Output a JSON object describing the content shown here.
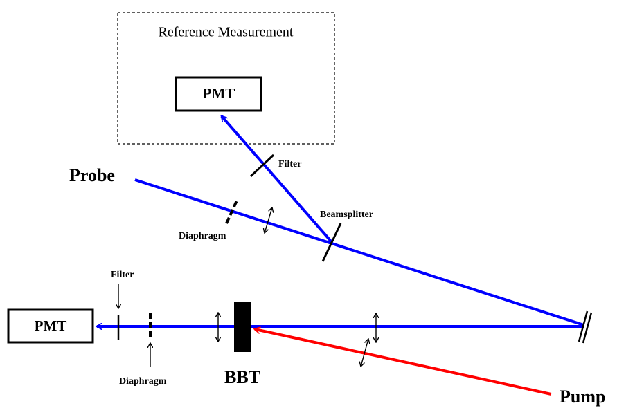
{
  "reference_box": {
    "title": "Reference Measurement",
    "detector": "PMT"
  },
  "labels": {
    "probe": "Probe",
    "pump": "Pump",
    "sample": "BBT",
    "beamsplitter": "Beamsplitter",
    "filter_reference": "Filter",
    "filter_signal": "Filter",
    "diaphragm_probe": "Diaphragm",
    "diaphragm_signal": "Diaphragm",
    "detector_signal": "PMT"
  }
}
